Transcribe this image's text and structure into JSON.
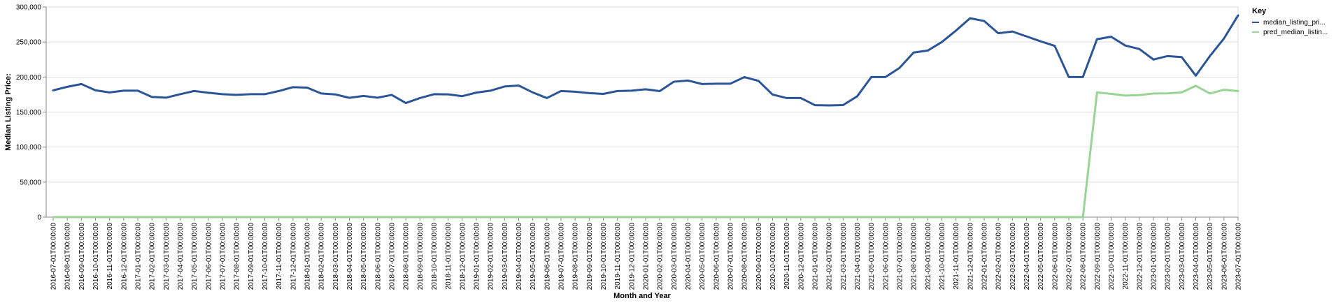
{
  "chart_data": {
    "type": "line",
    "xlabel": "Month and Year",
    "ylabel": "Median Listing Price:",
    "ylim": [
      0,
      300000
    ],
    "yticks": [
      "0",
      "50,000",
      "100,000",
      "150,000",
      "200,000",
      "250,000",
      "300,000"
    ],
    "grid": true,
    "legend": {
      "title": "Key",
      "placement": "top-right",
      "entries": [
        "median_listing_pri...",
        "pred_median_listin..."
      ]
    },
    "x": [
      "2016-07-01T00:00:00",
      "2016-08-01T00:00:00",
      "2016-09-01T00:00:00",
      "2016-10-01T00:00:00",
      "2016-11-01T00:00:00",
      "2016-12-01T00:00:00",
      "2017-01-01T00:00:00",
      "2017-02-01T00:00:00",
      "2017-03-01T00:00:00",
      "2017-04-01T00:00:00",
      "2017-05-01T00:00:00",
      "2017-06-01T00:00:00",
      "2017-07-01T00:00:00",
      "2017-08-01T00:00:00",
      "2017-09-01T00:00:00",
      "2017-10-01T00:00:00",
      "2017-11-01T00:00:00",
      "2017-12-01T00:00:00",
      "2018-01-01T00:00:00",
      "2018-02-01T00:00:00",
      "2018-03-01T00:00:00",
      "2018-04-01T00:00:00",
      "2018-05-01T00:00:00",
      "2018-06-01T00:00:00",
      "2018-07-01T00:00:00",
      "2018-08-01T00:00:00",
      "2018-09-01T00:00:00",
      "2018-10-01T00:00:00",
      "2018-11-01T00:00:00",
      "2018-12-01T00:00:00",
      "2019-01-01T00:00:00",
      "2019-02-01T00:00:00",
      "2019-03-01T00:00:00",
      "2019-04-01T00:00:00",
      "2019-05-01T00:00:00",
      "2019-06-01T00:00:00",
      "2019-07-01T00:00:00",
      "2019-08-01T00:00:00",
      "2019-09-01T00:00:00",
      "2019-10-01T00:00:00",
      "2019-11-01T00:00:00",
      "2019-12-01T00:00:00",
      "2020-01-01T00:00:00",
      "2020-02-01T00:00:00",
      "2020-03-01T00:00:00",
      "2020-04-01T00:00:00",
      "2020-05-01T00:00:00",
      "2020-06-01T00:00:00",
      "2020-07-01T00:00:00",
      "2020-08-01T00:00:00",
      "2020-09-01T00:00:00",
      "2020-10-01T00:00:00",
      "2020-11-01T00:00:00",
      "2020-12-01T00:00:00",
      "2021-01-01T00:00:00",
      "2021-02-01T00:00:00",
      "2021-03-01T00:00:00",
      "2021-04-01T00:00:00",
      "2021-05-01T00:00:00",
      "2021-06-01T00:00:00",
      "2021-07-01T00:00:00",
      "2021-08-01T00:00:00",
      "2021-09-01T00:00:00",
      "2021-10-01T00:00:00",
      "2021-11-01T00:00:00",
      "2021-12-01T00:00:00",
      "2022-01-01T00:00:00",
      "2022-02-01T00:00:00",
      "2022-03-01T00:00:00",
      "2022-04-01T00:00:00",
      "2022-05-01T00:00:00",
      "2022-06-01T00:00:00",
      "2022-07-01T00:00:00",
      "2022-08-01T00:00:00",
      "2022-09-01T00:00:00",
      "2022-10-01T00:00:00",
      "2022-11-01T00:00:00",
      "2022-12-01T00:00:00",
      "2023-01-01T00:00:00",
      "2023-02-01T00:00:00",
      "2023-03-01T00:00:00",
      "2023-04-01T00:00:00",
      "2023-05-01T00:00:00",
      "2023-06-01T00:00:00",
      "2023-07-01T00:00:00"
    ],
    "series": [
      {
        "name": "median_listing_pri...",
        "color": "#2c5598",
        "values": [
          181000,
          186000,
          190000,
          181000,
          178000,
          180500,
          180500,
          171500,
          170500,
          175500,
          180000,
          177500,
          175500,
          174500,
          175500,
          175500,
          180000,
          185500,
          184900,
          176500,
          175200,
          170300,
          173000,
          170500,
          174500,
          162900,
          170000,
          175500,
          175300,
          172700,
          177800,
          180500,
          186500,
          187900,
          178000,
          170000,
          180000,
          179000,
          177000,
          175900,
          180000,
          180500,
          182500,
          179900,
          193300,
          195000,
          190000,
          190500,
          190500,
          199900,
          194500,
          175000,
          170000,
          170000,
          159900,
          159500,
          160000,
          172500,
          200000,
          199900,
          213000,
          235000,
          237800,
          250000,
          266300,
          283900,
          280000,
          262500,
          265000,
          258000,
          251000,
          244500,
          199900,
          200000,
          254000,
          257500,
          245000,
          240000,
          225000,
          229900,
          228500,
          202000,
          229900,
          255000,
          288000
        ]
      },
      {
        "name": "pred_median_listin...",
        "color": "#98d594",
        "values": [
          0,
          0,
          0,
          0,
          0,
          0,
          0,
          0,
          0,
          0,
          0,
          0,
          0,
          0,
          0,
          0,
          0,
          0,
          0,
          0,
          0,
          0,
          0,
          0,
          0,
          0,
          0,
          0,
          0,
          0,
          0,
          0,
          0,
          0,
          0,
          0,
          0,
          0,
          0,
          0,
          0,
          0,
          0,
          0,
          0,
          0,
          0,
          0,
          0,
          0,
          0,
          0,
          0,
          0,
          0,
          0,
          0,
          0,
          0,
          0,
          0,
          0,
          0,
          0,
          0,
          0,
          0,
          0,
          0,
          0,
          0,
          0,
          0,
          0,
          178000,
          176000,
          173500,
          174200,
          176500,
          176700,
          178000,
          187500,
          176500,
          181800,
          180000
        ]
      }
    ]
  }
}
